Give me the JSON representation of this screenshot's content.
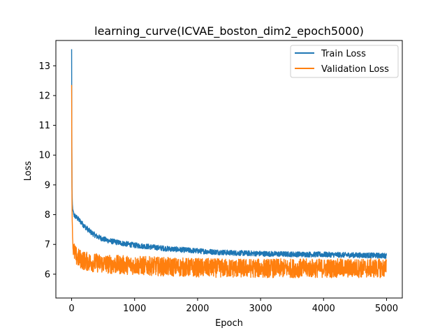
{
  "chart_data": {
    "type": "line",
    "title": "learning_curve(ICVAE_boston_dim2_epoch5000)",
    "xlabel": "Epoch",
    "ylabel": "Loss",
    "xlim": [
      -250,
      5250
    ],
    "ylim": [
      5.2,
      13.85
    ],
    "xticks": [
      0,
      1000,
      2000,
      3000,
      4000,
      5000
    ],
    "yticks": [
      6,
      7,
      8,
      9,
      10,
      11,
      12,
      13
    ],
    "legend_position": "upper right",
    "grid": false,
    "series": [
      {
        "name": "Train Loss",
        "color": "#1f77b4",
        "x": [
          0,
          5,
          10,
          20,
          40,
          70,
          100,
          150,
          200,
          300,
          400,
          500,
          600,
          800,
          1000,
          1200,
          1500,
          2000,
          2500,
          3000,
          3500,
          4000,
          4500,
          5000
        ],
        "values": [
          13.55,
          9.0,
          8.4,
          8.1,
          7.98,
          7.92,
          7.86,
          7.75,
          7.62,
          7.42,
          7.27,
          7.18,
          7.12,
          7.04,
          6.97,
          6.93,
          6.86,
          6.78,
          6.72,
          6.69,
          6.67,
          6.66,
          6.64,
          6.62
        ],
        "noise": 0.09
      },
      {
        "name": "Validation Loss",
        "color": "#ff7f0e",
        "x": [
          0,
          5,
          10,
          20,
          40,
          70,
          100,
          150,
          200,
          300,
          400,
          500,
          700,
          1000,
          1500,
          2000,
          2500,
          3000,
          3500,
          4000,
          4500,
          5000
        ],
        "values": [
          12.45,
          8.7,
          7.7,
          6.95,
          6.75,
          6.6,
          6.55,
          6.5,
          6.45,
          6.4,
          6.38,
          6.35,
          6.32,
          6.3,
          6.25,
          6.22,
          6.2,
          6.2,
          6.2,
          6.2,
          6.2,
          6.2
        ],
        "noise": 0.32
      }
    ]
  }
}
